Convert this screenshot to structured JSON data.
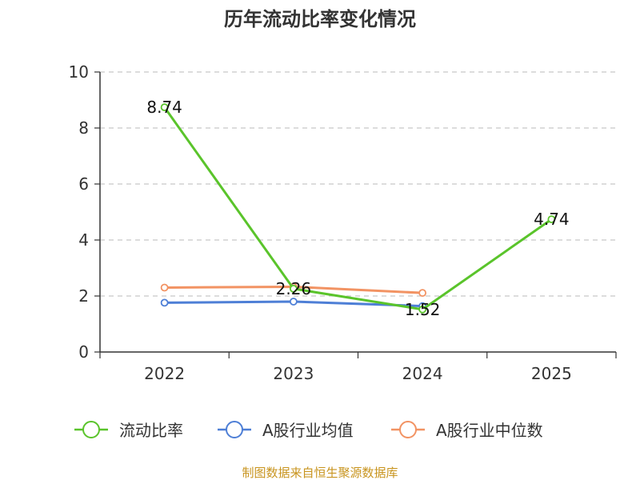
{
  "chart_data": {
    "type": "line",
    "title": "历年流动比率变化情况",
    "categories": [
      "2022",
      "2023",
      "2024",
      "2025"
    ],
    "ylim": [
      0,
      10
    ],
    "yticks": [
      0,
      2,
      4,
      6,
      8,
      10
    ],
    "grid": true,
    "legend_position": "bottom",
    "series": [
      {
        "name": "流动比率",
        "color": "#5ac42b",
        "values": [
          8.74,
          2.26,
          1.52,
          4.74
        ],
        "labels": [
          "8.74",
          "2.26",
          "1.52",
          "4.74"
        ]
      },
      {
        "name": "A股行业均值",
        "color": "#4e7fd6",
        "values": [
          1.76,
          1.8,
          1.64,
          null
        ],
        "labels": []
      },
      {
        "name": "A股行业中位数",
        "color": "#f29363",
        "values": [
          2.3,
          2.33,
          2.11,
          null
        ],
        "labels": []
      }
    ],
    "source": "制图数据来自恒生聚源数据库"
  }
}
